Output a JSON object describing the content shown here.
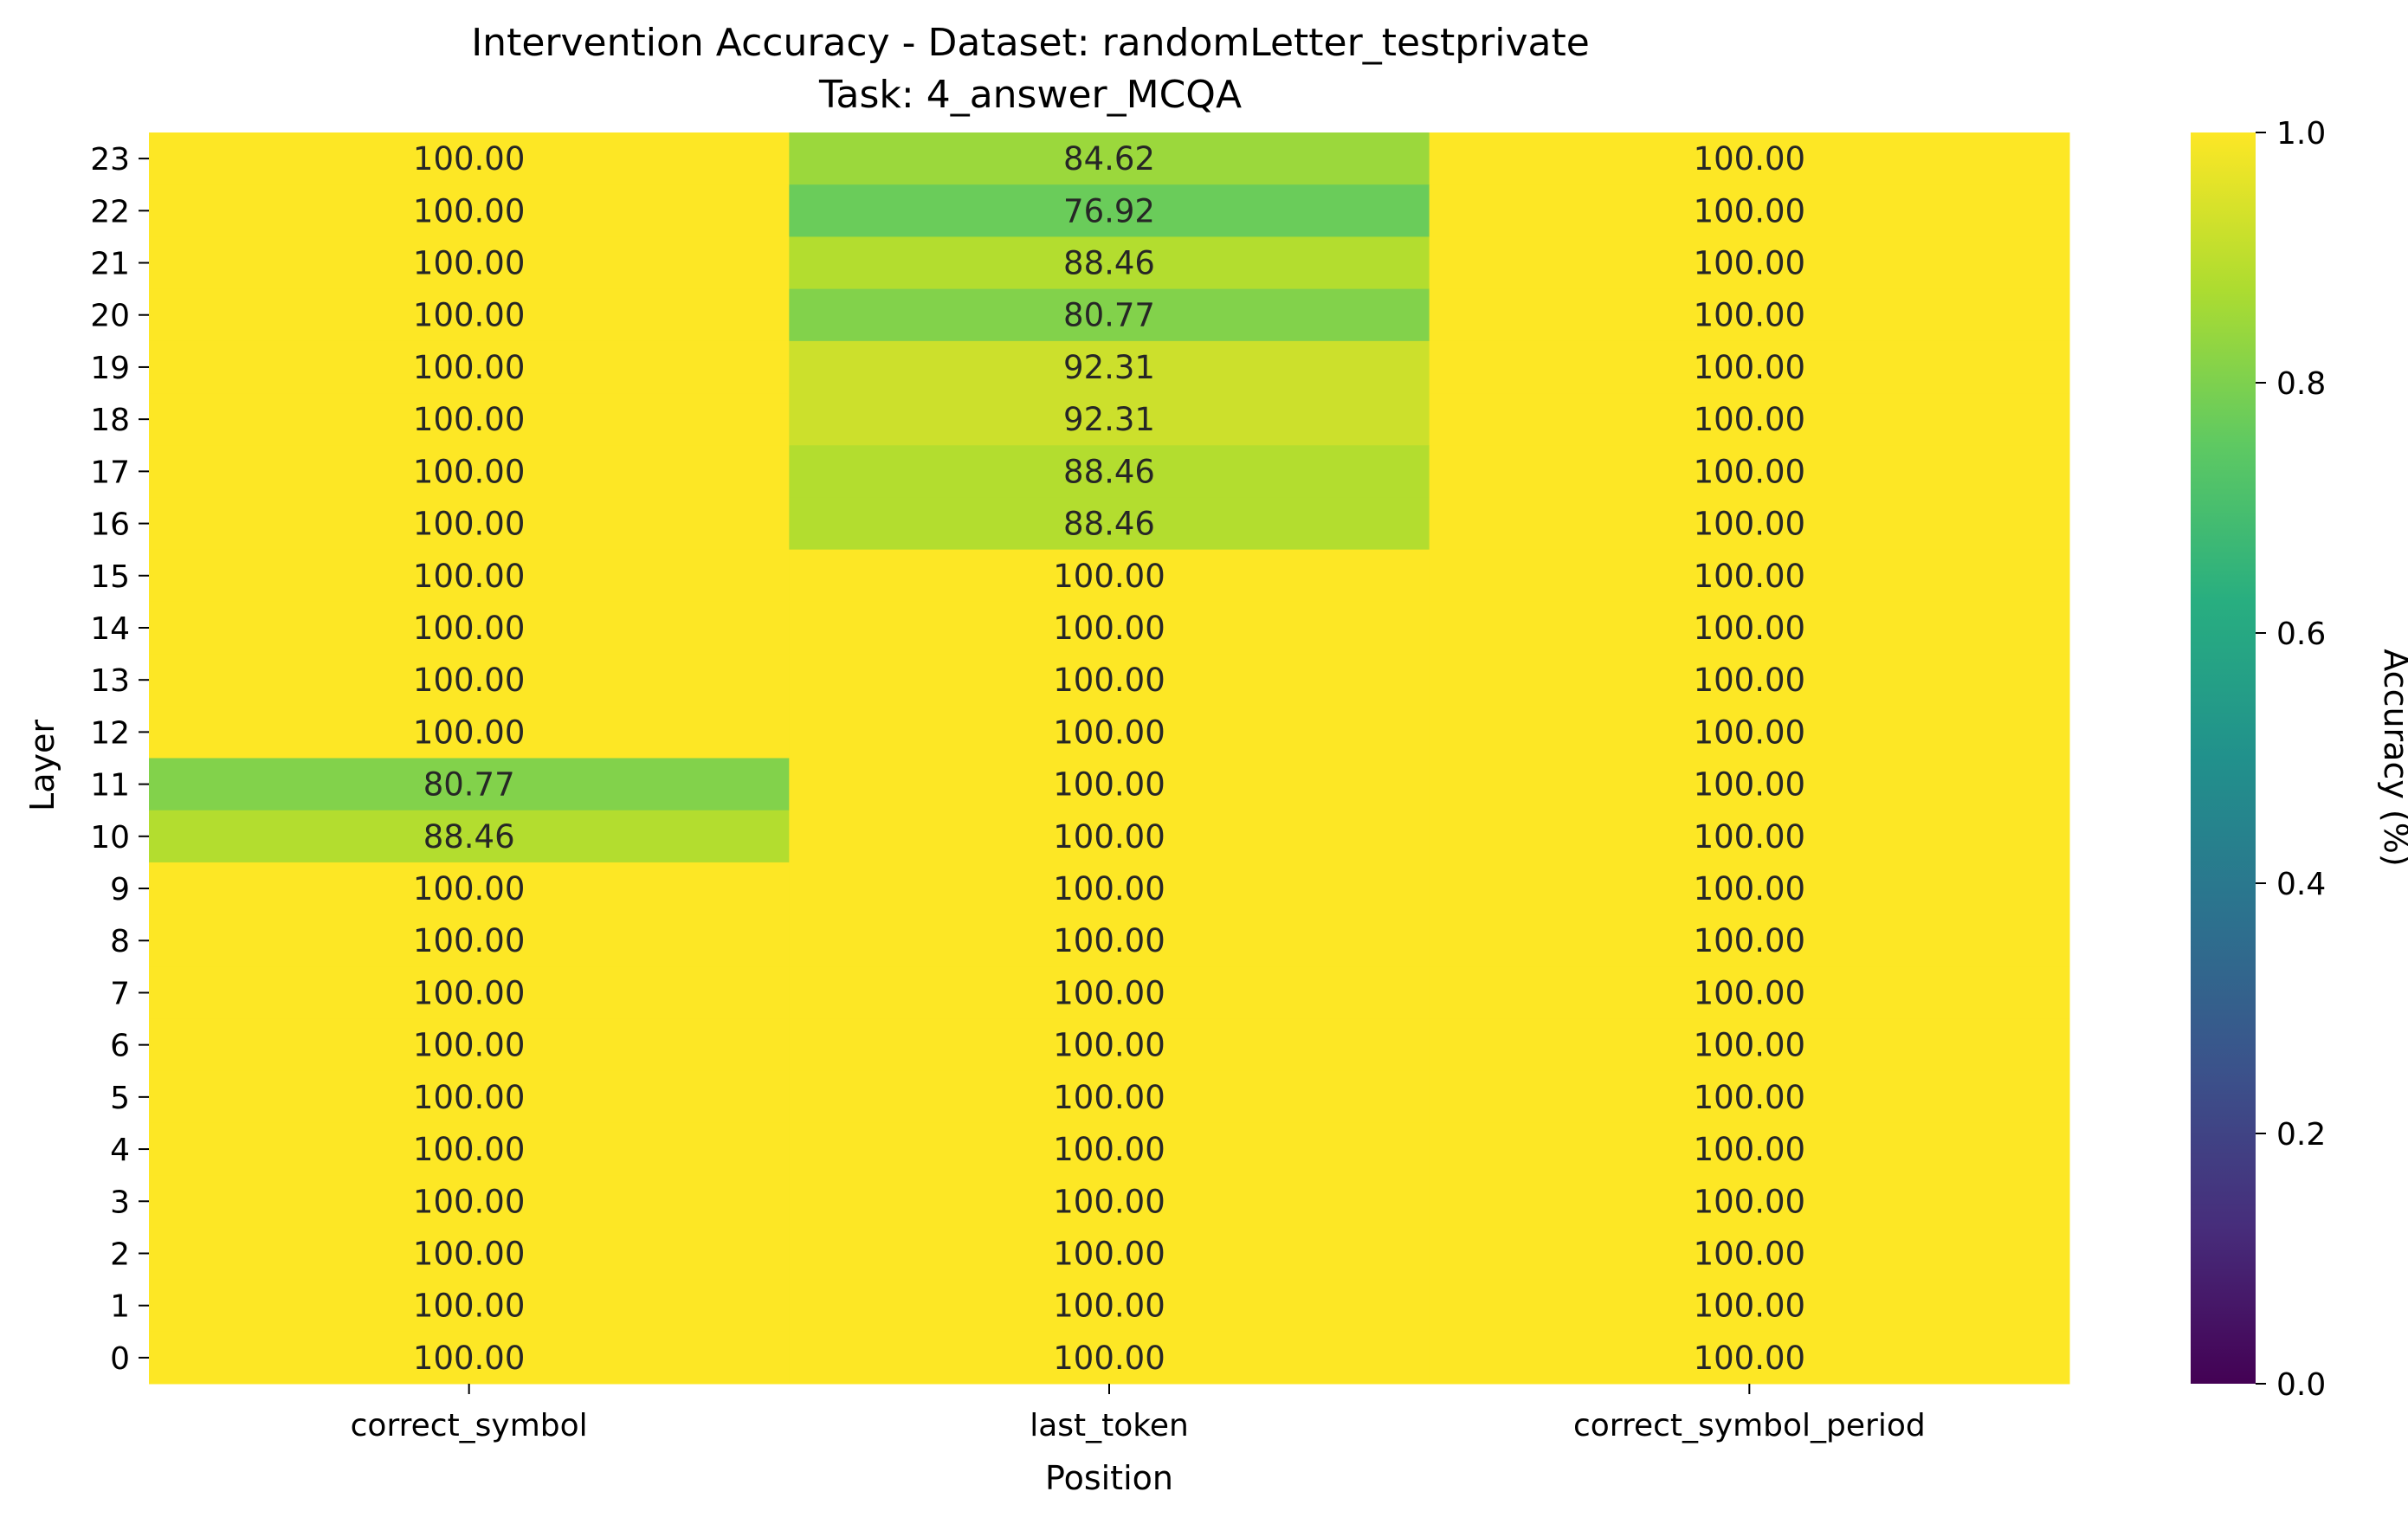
{
  "chart_data": {
    "type": "heatmap",
    "title": "Intervention Accuracy - Dataset: randomLetter_testprivate",
    "subtitle": "Task: 4_answer_MCQA",
    "xlabel": "Position",
    "ylabel": "Layer",
    "x_categories": [
      "correct_symbol",
      "last_token",
      "correct_symbol_period"
    ],
    "y_categories": [
      "23",
      "22",
      "21",
      "20",
      "19",
      "18",
      "17",
      "16",
      "15",
      "14",
      "13",
      "12",
      "11",
      "10",
      "9",
      "8",
      "7",
      "6",
      "5",
      "4",
      "3",
      "2",
      "1",
      "0"
    ],
    "values": [
      [
        100.0,
        84.62,
        100.0
      ],
      [
        100.0,
        76.92,
        100.0
      ],
      [
        100.0,
        88.46,
        100.0
      ],
      [
        100.0,
        80.77,
        100.0
      ],
      [
        100.0,
        92.31,
        100.0
      ],
      [
        100.0,
        92.31,
        100.0
      ],
      [
        100.0,
        88.46,
        100.0
      ],
      [
        100.0,
        88.46,
        100.0
      ],
      [
        100.0,
        100.0,
        100.0
      ],
      [
        100.0,
        100.0,
        100.0
      ],
      [
        100.0,
        100.0,
        100.0
      ],
      [
        100.0,
        100.0,
        100.0
      ],
      [
        80.77,
        100.0,
        100.0
      ],
      [
        88.46,
        100.0,
        100.0
      ],
      [
        100.0,
        100.0,
        100.0
      ],
      [
        100.0,
        100.0,
        100.0
      ],
      [
        100.0,
        100.0,
        100.0
      ],
      [
        100.0,
        100.0,
        100.0
      ],
      [
        100.0,
        100.0,
        100.0
      ],
      [
        100.0,
        100.0,
        100.0
      ],
      [
        100.0,
        100.0,
        100.0
      ],
      [
        100.0,
        100.0,
        100.0
      ],
      [
        100.0,
        100.0,
        100.0
      ],
      [
        100.0,
        100.0,
        100.0
      ]
    ],
    "colorbar": {
      "label": "Accuracy (%)",
      "range": [
        0.0,
        1.0
      ],
      "ticks": [
        "0.0",
        "0.2",
        "0.4",
        "0.6",
        "0.8",
        "1.0"
      ],
      "colormap": "viridis"
    }
  }
}
